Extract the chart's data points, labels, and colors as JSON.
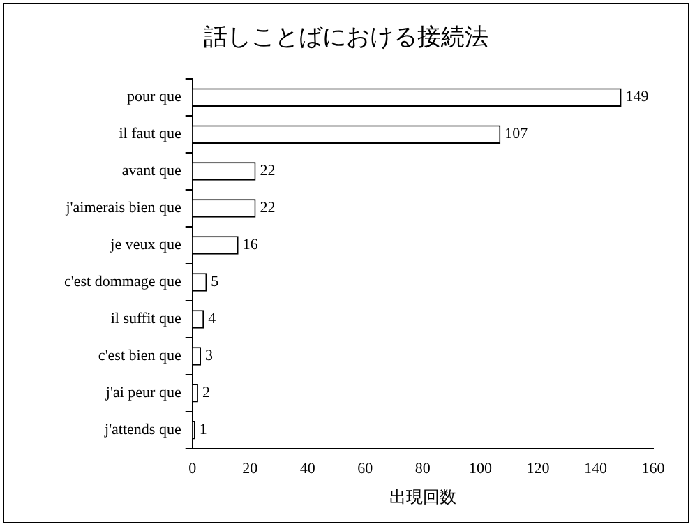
{
  "chart_data": {
    "type": "bar",
    "orientation": "horizontal",
    "title": "話しことばにおける接続法",
    "xlabel": "出現回数",
    "categories": [
      "pour que",
      "il faut que",
      "avant que",
      "j'aimerais bien que",
      "je veux que",
      "c'est dommage que",
      "il suffit que",
      "c'est bien que",
      "j'ai peur que",
      "j'attends que"
    ],
    "values": [
      149,
      107,
      22,
      22,
      16,
      5,
      4,
      3,
      2,
      1
    ],
    "color": "#ffffff",
    "xlim": [
      0,
      160
    ],
    "xticks": [
      0,
      20,
      40,
      60,
      80,
      100,
      120,
      140,
      160
    ],
    "grid": false,
    "legend": false,
    "data_labels": true
  }
}
